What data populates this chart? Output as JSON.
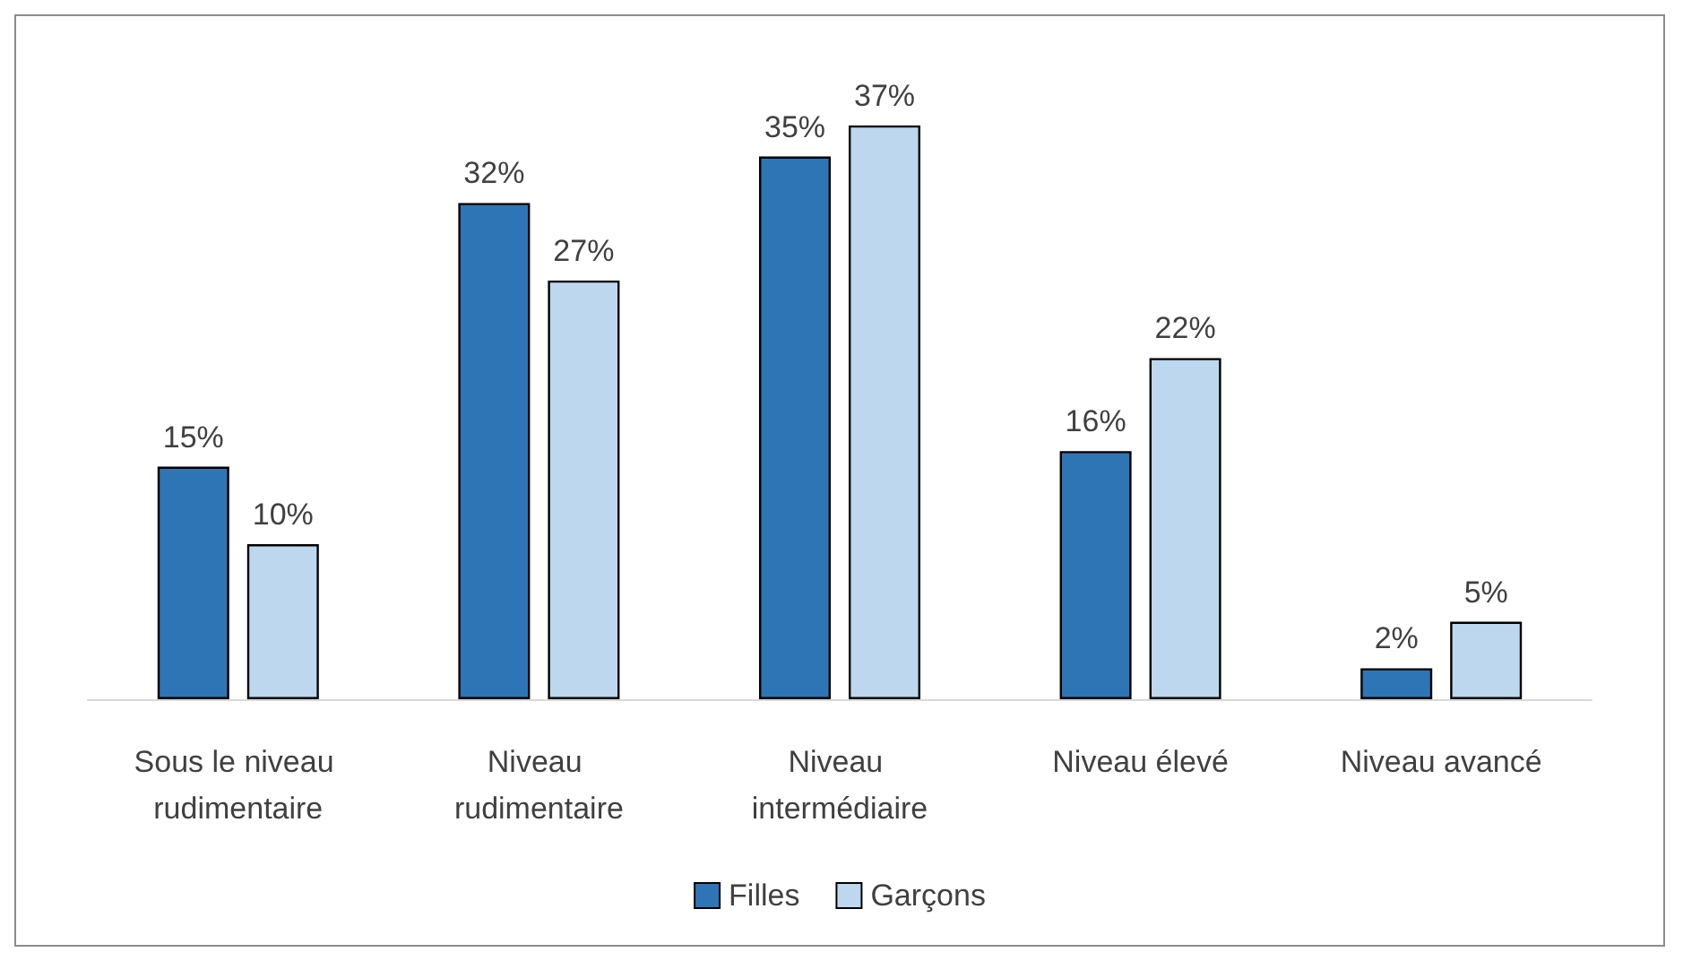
{
  "chart_data": {
    "type": "bar",
    "categories": [
      "Sous le niveau rudimentaire",
      "Niveau rudimentaire",
      "Niveau intermédiaire",
      "Niveau élevé",
      "Niveau avancé"
    ],
    "series": [
      {
        "name": "Filles",
        "color": "#2e75b6",
        "values": [
          15,
          32,
          35,
          16,
          2
        ],
        "value_labels": [
          "15%",
          "32%",
          "35%",
          "16%",
          "2%"
        ]
      },
      {
        "name": "Garçons",
        "color": "#bdd7ee",
        "values": [
          10,
          27,
          37,
          22,
          5
        ],
        "value_labels": [
          "10%",
          "27%",
          "37%",
          "22%",
          "5%"
        ]
      }
    ],
    "legend": "bottom"
  }
}
